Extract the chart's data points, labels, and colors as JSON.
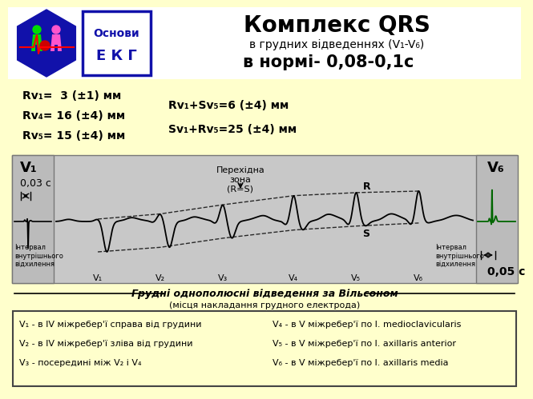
{
  "bg_color": "#FFFFCC",
  "title_main": "Комплекс QRS",
  "title_sub1": "в грудних відведеннях (V₁-V₆)",
  "title_sub2": "в нормі- 0,08-0,1с",
  "osnovy_line1": "Основи",
  "osnovy_line2": "Е К Г",
  "hex_color": "#0000BB",
  "formulas_left": [
    "Rv₁=  3 (±1) мм",
    "Rv₄= 16 (±4) мм",
    "Rv₅= 15 (±4) мм"
  ],
  "formulas_right": [
    "Rv₁+Sv₅=6 (±4) мм",
    "Sv₁+Rv₅=25 (±4) мм"
  ],
  "ecg_area_color": "#CCCCCC",
  "v1_label": "V₁",
  "v6_label": "V₆",
  "interval_text": "Інтервал\nвнутрішнього\nвідхилення",
  "zone_label": "Перехідна\nзона\n(R=S)",
  "time_left": "0,03 с",
  "time_right": "0,05 с",
  "bottom_title": "Грудні однополюсні відведення за Вільсоном",
  "bottom_sub": "(місця накладання грудного електрода)",
  "bottom_lines_left": [
    "V₁ - в IV міжребер'ї справа від грудини",
    "V₂ - в IV міжребер'ї зліва від грудини",
    "V₃ - посередині між V₂ і V₄"
  ],
  "bottom_lines_right": [
    "V₄ - в V міжребер'ї по l. medioclavicularis",
    "V₅ - в V міжребер'ї по l. axillaris anterior",
    "V₆ - в V міжребер'ї по l. axillaris media"
  ],
  "v_labels": [
    "V₁",
    "V₂",
    "V₃",
    "V₄",
    "V₅",
    "V₆"
  ],
  "qrs_centers": [
    0.1,
    0.25,
    0.4,
    0.57,
    0.72,
    0.87
  ],
  "r_amps": [
    0.08,
    0.25,
    0.55,
    0.85,
    0.95,
    1.0
  ],
  "s_amps": [
    1.0,
    0.85,
    0.55,
    0.28,
    0.15,
    0.05
  ],
  "q_amps": [
    0.0,
    0.04,
    0.08,
    0.12,
    0.15,
    0.15
  ]
}
